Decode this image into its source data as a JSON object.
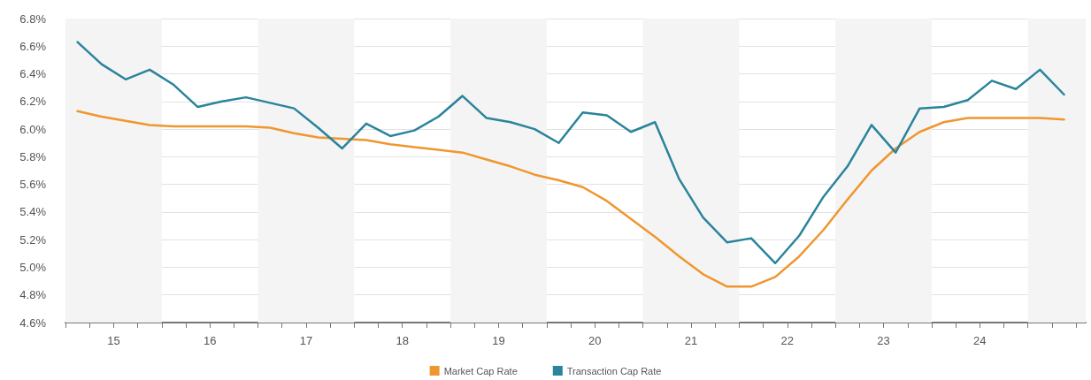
{
  "chart_data": {
    "type": "line",
    "x": [
      15.125,
      15.375,
      15.625,
      15.875,
      16.125,
      16.375,
      16.625,
      16.875,
      17.125,
      17.375,
      17.625,
      17.875,
      18.125,
      18.375,
      18.625,
      18.875,
      19.125,
      19.375,
      19.625,
      19.875,
      20.125,
      20.375,
      20.625,
      20.875,
      21.125,
      21.375,
      21.625,
      21.875,
      22.125,
      22.375,
      22.625,
      22.875,
      23.125,
      23.375,
      23.625,
      23.875,
      24.125,
      24.375,
      24.625,
      24.875,
      25.125,
      25.375
    ],
    "series": [
      {
        "name": "Market Cap Rate",
        "color": "#f0962f",
        "values": [
          6.13,
          6.09,
          6.06,
          6.03,
          6.02,
          6.02,
          6.02,
          6.02,
          6.01,
          5.97,
          5.94,
          5.93,
          5.92,
          5.89,
          5.87,
          5.85,
          5.83,
          5.78,
          5.73,
          5.67,
          5.63,
          5.58,
          5.48,
          5.35,
          5.22,
          5.08,
          4.95,
          4.86,
          4.86,
          4.93,
          5.08,
          5.27,
          5.49,
          5.7,
          5.86,
          5.98,
          6.05,
          6.08,
          6.08,
          6.08,
          6.08,
          6.07
        ]
      },
      {
        "name": "Transaction Cap Rate",
        "color": "#2a849b",
        "values": [
          6.63,
          6.47,
          6.36,
          6.43,
          6.32,
          6.16,
          6.2,
          6.23,
          6.19,
          6.15,
          6.01,
          5.86,
          6.04,
          5.95,
          5.99,
          6.09,
          6.24,
          6.08,
          6.05,
          6.0,
          5.9,
          6.12,
          6.1,
          5.98,
          6.05,
          5.64,
          5.36,
          5.18,
          5.21,
          5.03,
          5.23,
          5.51,
          5.73,
          6.03,
          5.83,
          6.15,
          6.16,
          6.21,
          6.35,
          6.29,
          6.43,
          6.25
        ]
      }
    ],
    "xlim": [
      15,
      25.6
    ],
    "xticks": [
      {
        "value": 15,
        "label": null
      },
      {
        "value": 15.25,
        "label": null
      },
      {
        "value": 15.5,
        "label": "15"
      },
      {
        "value": 15.75,
        "label": null
      },
      {
        "value": 16,
        "label": null
      },
      {
        "value": 16.25,
        "label": null
      },
      {
        "value": 16.5,
        "label": "16"
      },
      {
        "value": 16.75,
        "label": null
      },
      {
        "value": 17,
        "label": null
      },
      {
        "value": 17.25,
        "label": null
      },
      {
        "value": 17.5,
        "label": "17"
      },
      {
        "value": 17.75,
        "label": null
      },
      {
        "value": 18,
        "label": null
      },
      {
        "value": 18.25,
        "label": null
      },
      {
        "value": 18.5,
        "label": "18"
      },
      {
        "value": 18.75,
        "label": null
      },
      {
        "value": 19,
        "label": null
      },
      {
        "value": 19.25,
        "label": null
      },
      {
        "value": 19.5,
        "label": "19"
      },
      {
        "value": 19.75,
        "label": null
      },
      {
        "value": 20,
        "label": null
      },
      {
        "value": 20.25,
        "label": null
      },
      {
        "value": 20.5,
        "label": "20"
      },
      {
        "value": 20.75,
        "label": null
      },
      {
        "value": 21,
        "label": null
      },
      {
        "value": 21.25,
        "label": null
      },
      {
        "value": 21.5,
        "label": "21"
      },
      {
        "value": 21.75,
        "label": null
      },
      {
        "value": 22,
        "label": null
      },
      {
        "value": 22.25,
        "label": null
      },
      {
        "value": 22.5,
        "label": "22"
      },
      {
        "value": 22.75,
        "label": null
      },
      {
        "value": 23,
        "label": null
      },
      {
        "value": 23.25,
        "label": null
      },
      {
        "value": 23.5,
        "label": "23"
      },
      {
        "value": 23.75,
        "label": null
      },
      {
        "value": 24,
        "label": null
      },
      {
        "value": 24.25,
        "label": null
      },
      {
        "value": 24.5,
        "label": "24"
      },
      {
        "value": 24.75,
        "label": null
      },
      {
        "value": 25,
        "label": null
      },
      {
        "value": 25.25,
        "label": null
      },
      {
        "value": 25.5,
        "label": null
      }
    ],
    "ylim": [
      4.6,
      6.8
    ],
    "yticks": [
      {
        "value": 4.6,
        "label": "4.6%"
      },
      {
        "value": 4.8,
        "label": "4.8%"
      },
      {
        "value": 5.0,
        "label": "5.0%"
      },
      {
        "value": 5.2,
        "label": "5.2%"
      },
      {
        "value": 5.4,
        "label": "5.4%"
      },
      {
        "value": 5.6,
        "label": "5.6%"
      },
      {
        "value": 5.8,
        "label": "5.8%"
      },
      {
        "value": 6.0,
        "label": "6.0%"
      },
      {
        "value": 6.2,
        "label": "6.2%"
      },
      {
        "value": 6.4,
        "label": "6.4%"
      },
      {
        "value": 6.6,
        "label": "6.6%"
      },
      {
        "value": 6.8,
        "label": "6.8%"
      }
    ],
    "bands": [
      {
        "axis": "x",
        "from": 15,
        "to": 16,
        "color": "#f4f4f4"
      },
      {
        "axis": "x",
        "from": 17,
        "to": 18,
        "color": "#f4f4f4"
      },
      {
        "axis": "x",
        "from": 19,
        "to": 20,
        "color": "#f4f4f4"
      },
      {
        "axis": "x",
        "from": 21,
        "to": 22,
        "color": "#f4f4f4"
      },
      {
        "axis": "x",
        "from": 23,
        "to": 24,
        "color": "#f4f4f4"
      },
      {
        "axis": "x",
        "from": 25,
        "to": 25.6,
        "color": "#f4f4f4"
      }
    ],
    "grid": "y",
    "legend": "bottom",
    "marker": "none",
    "line_style": "solid"
  }
}
